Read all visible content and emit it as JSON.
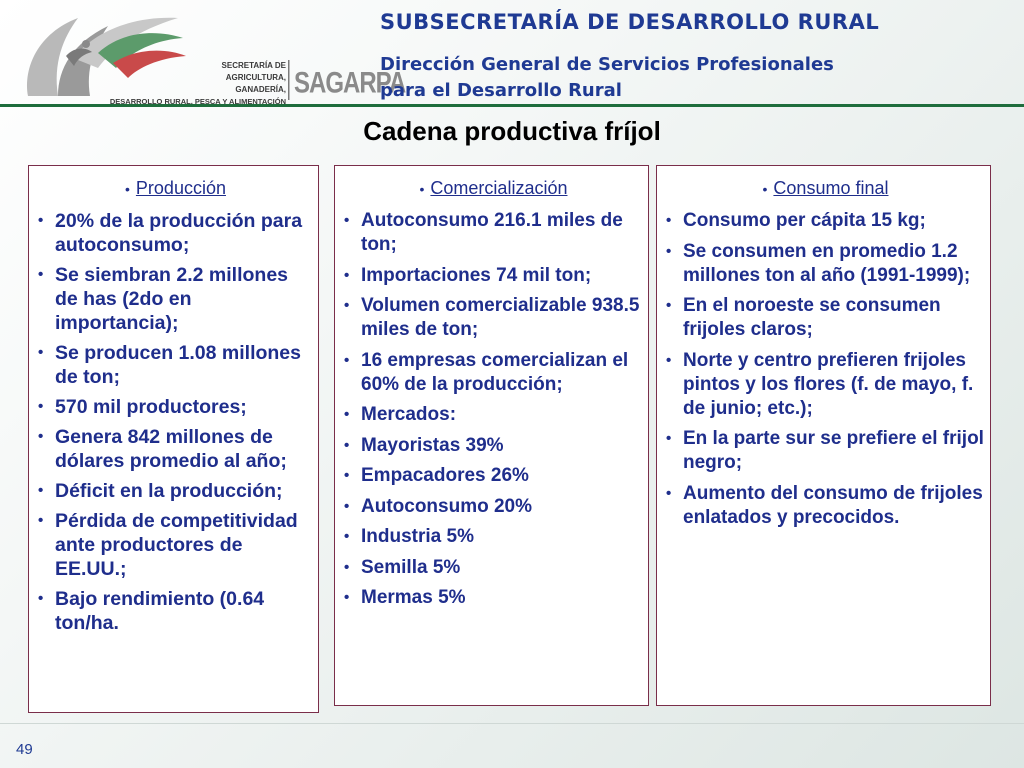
{
  "logo": {
    "line1": "SECRETARÍA DE",
    "line2": "AGRICULTURA, GANADERÍA,",
    "line3": "DESARROLLO RURAL, PESCA Y ALIMENTACIÓN",
    "brand": "SAGARPA",
    "icon": "eagle-emblem"
  },
  "header": {
    "title": "SUBSECRETARÍA DE DESARROLLO RURAL",
    "subtitle_line1": "Dirección General de Servicios Profesionales",
    "subtitle_line2": "para el Desarrollo Rural"
  },
  "slide": {
    "title": "Cadena productiva fríjol",
    "page_number": "49"
  },
  "columns": [
    {
      "heading": "Producción",
      "items": [
        "20% de la producción para autoconsumo;",
        "Se siembran 2.2 millones de has (2do en importancia);",
        "Se producen 1.08 millones de ton;",
        "570 mil productores;",
        "Genera 842 millones de dólares promedio al año;",
        "Déficit en la producción;",
        "Pérdida de competitividad ante productores de EE.UU.;",
        "Bajo rendimiento (0.64 ton/ha."
      ]
    },
    {
      "heading": "Comercialización",
      "items": [
        "Autoconsumo 216.1 miles de ton;",
        "Importaciones 74 mil ton;",
        "Volumen comercializable 938.5 miles de ton;",
        "16 empresas comercializan el 60% de la producción;",
        "Mercados:",
        "Mayoristas 39%",
        "Empacadores 26%",
        "Autoconsumo 20%",
        "Industria 5%",
        "Semilla 5%",
        "Mermas 5%"
      ]
    },
    {
      "heading": "Consumo final",
      "items": [
        "Consumo per cápita 15 kg;",
        "Se consumen en promedio 1.2 millones ton al año (1991-1999);",
        "En el noroeste se consumen frijoles claros;",
        "Norte y centro prefieren frijoles pintos y los flores (f. de mayo, f. de junio; etc.);",
        "En la parte sur se prefiere el frijol negro;",
        " Aumento del consumo de frijoles enlatados y precocidos."
      ]
    }
  ],
  "colors": {
    "header_blue": "#1f3a93",
    "text_blue": "#1f2e8c",
    "rule_green": "#1e6d3c",
    "box_border": "#7a2e4a"
  }
}
